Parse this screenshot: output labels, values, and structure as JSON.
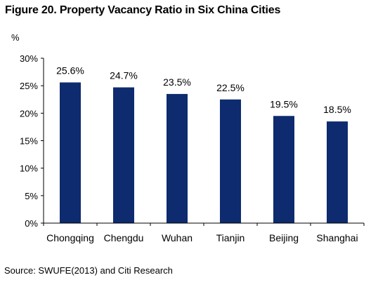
{
  "title": "Figure 20. Property Vacancy Ratio in Six China Cities",
  "unit_label": "%",
  "source": "Source: SWUFE(2013) and Citi Research",
  "colors": {
    "bar": "#0d2b6e",
    "axis": "#000000"
  },
  "chart_data": {
    "type": "bar",
    "title": "Figure 20. Property Vacancy Ratio in Six China Cities",
    "xlabel": "",
    "ylabel": "%",
    "categories": [
      "Chongqing",
      "Chengdu",
      "Wuhan",
      "Tianjin",
      "Beijing",
      "Shanghai"
    ],
    "values": [
      25.6,
      24.7,
      23.5,
      22.5,
      19.5,
      18.5
    ],
    "value_labels": [
      "25.6%",
      "24.7%",
      "23.5%",
      "22.5%",
      "19.5%",
      "18.5%"
    ],
    "ylim": [
      0,
      30
    ],
    "yticks": [
      0,
      5,
      10,
      15,
      20,
      25,
      30
    ],
    "ytick_labels": [
      "0%",
      "5%",
      "10%",
      "15%",
      "20%",
      "25%",
      "30%"
    ],
    "grid": false,
    "legend": "none"
  }
}
